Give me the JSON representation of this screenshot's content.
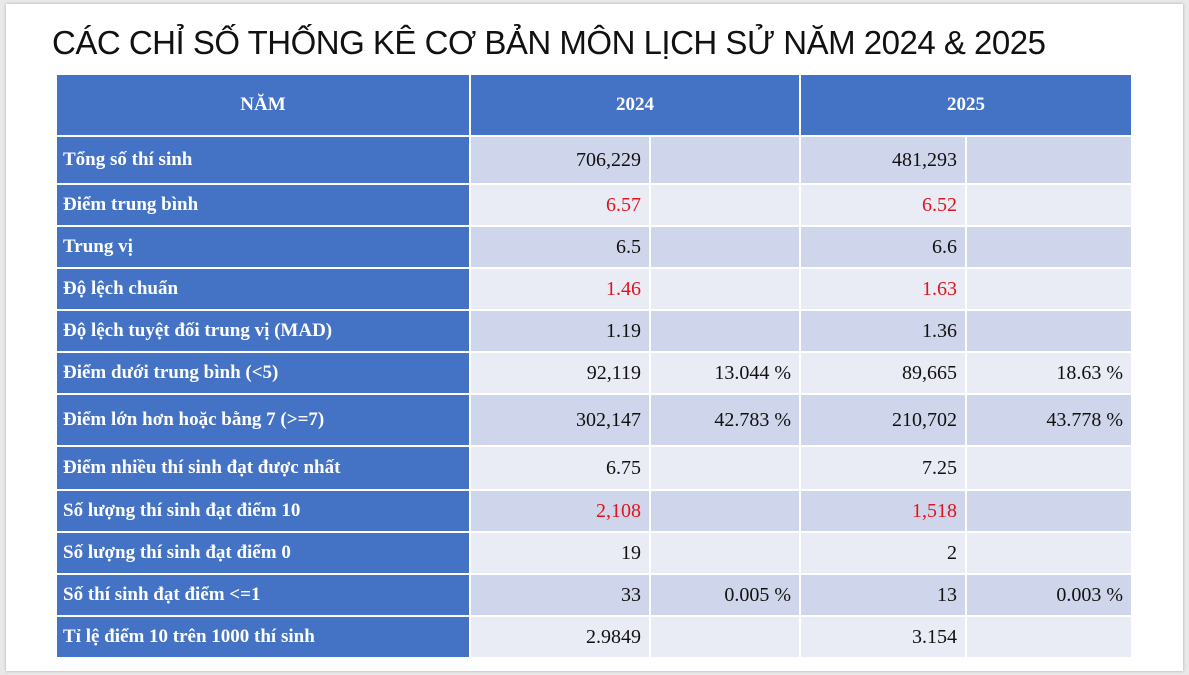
{
  "title": "CÁC CHỈ SỐ THỐNG KÊ CƠ BẢN MÔN LỊCH SỬ NĂM 2024 & 2025",
  "header": {
    "col_label": "NĂM",
    "year_a": "2024",
    "year_b": "2025"
  },
  "rows": [
    {
      "label": "Tổng số thí sinh",
      "a_val": "706,229",
      "a_pct": "",
      "b_val": "481,293",
      "b_pct": "",
      "highlight": false
    },
    {
      "label": "Điểm trung bình",
      "a_val": "6.57",
      "a_pct": "",
      "b_val": "6.52",
      "b_pct": "",
      "highlight": true
    },
    {
      "label": "Trung vị",
      "a_val": "6.5",
      "a_pct": "",
      "b_val": "6.6",
      "b_pct": "",
      "highlight": false
    },
    {
      "label": "Độ lệch chuẩn",
      "a_val": "1.46",
      "a_pct": "",
      "b_val": "1.63",
      "b_pct": "",
      "highlight": true
    },
    {
      "label": "Độ lệch tuyệt đối trung vị (MAD)",
      "a_val": "1.19",
      "a_pct": "",
      "b_val": "1.36",
      "b_pct": "",
      "highlight": false
    },
    {
      "label": "Điểm dưới trung bình (<5)",
      "a_val": "92,119",
      "a_pct": "13.044 %",
      "b_val": "89,665",
      "b_pct": "18.63 %",
      "highlight": false
    },
    {
      "label": "Điểm lớn hơn hoặc bằng 7 (>=7)",
      "a_val": "302,147",
      "a_pct": "42.783 %",
      "b_val": "210,702",
      "b_pct": "43.778 %",
      "highlight": false
    },
    {
      "label": "Điểm nhiều thí sinh đạt được nhất",
      "a_val": "6.75",
      "a_pct": "",
      "b_val": "7.25",
      "b_pct": "",
      "highlight": false
    },
    {
      "label": "Số lượng thí sinh đạt điểm 10",
      "a_val": "2,108",
      "a_pct": "",
      "b_val": "1,518",
      "b_pct": "",
      "highlight": true
    },
    {
      "label": "Số lượng thí sinh đạt điểm 0",
      "a_val": "19",
      "a_pct": "",
      "b_val": "2",
      "b_pct": "",
      "highlight": false
    },
    {
      "label": "Số thí sinh đạt điểm <=1",
      "a_val": "33",
      "a_pct": "0.005 %",
      "b_val": "13",
      "b_pct": "0.003 %",
      "highlight": false
    },
    {
      "label": "Tỉ lệ điểm 10 trên 1000 thí sinh",
      "a_val": "2.9849",
      "a_pct": "",
      "b_val": "3.154",
      "b_pct": "",
      "highlight": false
    }
  ],
  "colors": {
    "header_blue": "#4472c4",
    "row_dark": "#cfd5ea",
    "row_light": "#e9ebf5",
    "highlight_red": "#e0141e"
  }
}
